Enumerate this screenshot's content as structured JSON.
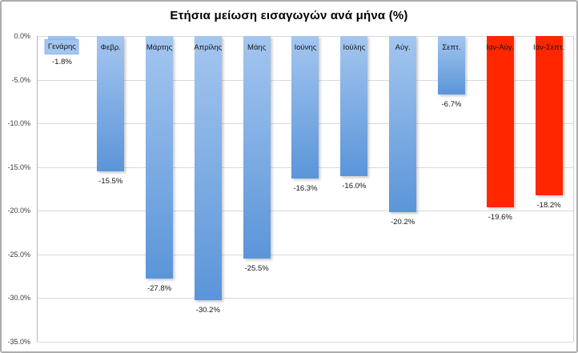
{
  "chart_data": {
    "type": "bar",
    "title": "Ετήσια μείωση εισαγωγών ανά μήνα (%)",
    "categories": [
      "Γενάρης",
      "Φεβρ.",
      "Μάρτης",
      "Απρίλης",
      "Μάης",
      "Ιούνης",
      "Ιούλης",
      "Αύγ.",
      "Σεπτ.",
      "Ιαν-Αύγ.",
      "Ιάν-Σεπτ."
    ],
    "values": [
      -1.8,
      -15.5,
      -27.8,
      -30.2,
      -25.5,
      -16.3,
      -16.0,
      -20.2,
      -6.7,
      -19.6,
      -18.2
    ],
    "value_labels": [
      "-1.8%",
      "-15.5%",
      "-27.8%",
      "-30.2%",
      "-25.5%",
      "-16.3%",
      "-16.0%",
      "-20.2%",
      "-6.7%",
      "-19.6%",
      "-18.2%"
    ],
    "bar_color_keys": [
      "blue",
      "blue",
      "blue",
      "blue",
      "blue",
      "blue",
      "blue",
      "blue",
      "blue",
      "red",
      "red"
    ],
    "ylim": [
      -35,
      0
    ],
    "ytick_labels": [
      "0.0%",
      "-5.0%",
      "-10.0%",
      "-15.0%",
      "-20.0%",
      "-25.0%",
      "-30.0%",
      "-35.0%"
    ],
    "xlabel": "",
    "ylabel": "",
    "grid": true,
    "legend": false,
    "highlighted_category_index": 0,
    "colors": {
      "bar_blue_top": "#a4c6ef",
      "bar_blue_bottom": "#5b95d9",
      "bar_red": "#ff2600",
      "gridline": "#d9d9d9",
      "axis_line": "#b3b3b3",
      "label_text": "#151515",
      "highlight_label_bg": "#a2c6f0"
    }
  }
}
